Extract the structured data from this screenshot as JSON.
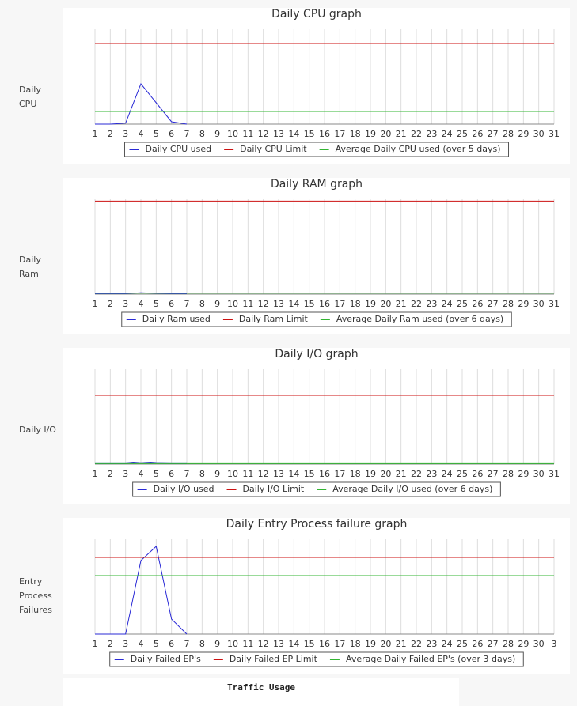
{
  "row_labels": [
    "Daily CPU",
    "Daily Ram",
    "Daily I/O",
    "Entry Process Failures"
  ],
  "traffic_title": "Traffic Usage",
  "chart_data": [
    {
      "type": "line",
      "title": "Daily CPU graph",
      "ylim": [
        0,
        100
      ],
      "categories": [
        "1",
        "2",
        "3",
        "4",
        "5",
        "6",
        "7",
        "8",
        "9",
        "10",
        "11",
        "12",
        "13",
        "14",
        "15",
        "16",
        "17",
        "18",
        "19",
        "20",
        "21",
        "22",
        "23",
        "24",
        "25",
        "26",
        "27",
        "28",
        "29",
        "30",
        "31"
      ],
      "series": [
        {
          "name": "Daily CPU used",
          "color": "#2a2ad6",
          "values": [
            0,
            0,
            1,
            42.5,
            22.5,
            2.5,
            0,
            null,
            null,
            null,
            null,
            null,
            null,
            null,
            null,
            null,
            null,
            null,
            null,
            null,
            null,
            null,
            null,
            null,
            null,
            null,
            null,
            null,
            null,
            null,
            null
          ]
        },
        {
          "name": "Daily CPU Limit",
          "color": "#cc1111",
          "values": [
            85,
            85,
            85,
            85,
            85,
            85,
            85,
            85,
            85,
            85,
            85,
            85,
            85,
            85,
            85,
            85,
            85,
            85,
            85,
            85,
            85,
            85,
            85,
            85,
            85,
            85,
            85,
            85,
            85,
            85,
            85
          ]
        },
        {
          "name": "Average Daily CPU used (over 5 days)",
          "color": "#33b533",
          "values": [
            13.3,
            13.3,
            13.3,
            13.3,
            13.3,
            13.3,
            13.3,
            13.3,
            13.3,
            13.3,
            13.3,
            13.3,
            13.3,
            13.3,
            13.3,
            13.3,
            13.3,
            13.3,
            13.3,
            13.3,
            13.3,
            13.3,
            13.3,
            13.3,
            13.3,
            13.3,
            13.3,
            13.3,
            13.3,
            13.3,
            13.3
          ]
        }
      ]
    },
    {
      "type": "line",
      "title": "Daily RAM graph",
      "ylim": [
        0,
        100
      ],
      "categories": [
        "1",
        "2",
        "3",
        "4",
        "5",
        "6",
        "7",
        "8",
        "9",
        "10",
        "11",
        "12",
        "13",
        "14",
        "15",
        "16",
        "17",
        "18",
        "19",
        "20",
        "21",
        "22",
        "23",
        "24",
        "25",
        "26",
        "27",
        "28",
        "29",
        "30",
        "31"
      ],
      "series": [
        {
          "name": "Daily Ram used",
          "color": "#2a2ad6",
          "values": [
            0.5,
            0.5,
            0.5,
            1.5,
            0.8,
            0.5,
            0.5,
            null,
            null,
            null,
            null,
            null,
            null,
            null,
            null,
            null,
            null,
            null,
            null,
            null,
            null,
            null,
            null,
            null,
            null,
            null,
            null,
            null,
            null,
            null,
            null
          ]
        },
        {
          "name": "Daily Ram Limit",
          "color": "#cc1111",
          "values": [
            98,
            98,
            98,
            98,
            98,
            98,
            98,
            98,
            98,
            98,
            98,
            98,
            98,
            98,
            98,
            98,
            98,
            98,
            98,
            98,
            98,
            98,
            98,
            98,
            98,
            98,
            98,
            98,
            98,
            98,
            98
          ]
        },
        {
          "name": "Average Daily Ram used  (over 6 days)",
          "color": "#33b533",
          "values": [
            1,
            1,
            1,
            1,
            1,
            1,
            1,
            1,
            1,
            1,
            1,
            1,
            1,
            1,
            1,
            1,
            1,
            1,
            1,
            1,
            1,
            1,
            1,
            1,
            1,
            1,
            1,
            1,
            1,
            1,
            1
          ]
        }
      ]
    },
    {
      "type": "line",
      "title": "Daily I/O graph",
      "ylim": [
        0,
        100
      ],
      "categories": [
        "1",
        "2",
        "3",
        "4",
        "5",
        "6",
        "7",
        "8",
        "9",
        "10",
        "11",
        "12",
        "13",
        "14",
        "15",
        "16",
        "17",
        "18",
        "19",
        "20",
        "21",
        "22",
        "23",
        "24",
        "25",
        "26",
        "27",
        "28",
        "29",
        "30",
        "31"
      ],
      "series": [
        {
          "name": "Daily I/O used",
          "color": "#2a2ad6",
          "values": [
            0.5,
            0.5,
            0.5,
            2,
            0.8,
            0.5,
            0.5,
            null,
            null,
            null,
            null,
            null,
            null,
            null,
            null,
            null,
            null,
            null,
            null,
            null,
            null,
            null,
            null,
            null,
            null,
            null,
            null,
            null,
            null,
            null,
            null
          ]
        },
        {
          "name": "Daily I/O Limit",
          "color": "#cc1111",
          "values": [
            72.5,
            72.5,
            72.5,
            72.5,
            72.5,
            72.5,
            72.5,
            72.5,
            72.5,
            72.5,
            72.5,
            72.5,
            72.5,
            72.5,
            72.5,
            72.5,
            72.5,
            72.5,
            72.5,
            72.5,
            72.5,
            72.5,
            72.5,
            72.5,
            72.5,
            72.5,
            72.5,
            72.5,
            72.5,
            72.5,
            72.5
          ]
        },
        {
          "name": "Average Daily I/O used (over 6 days)",
          "color": "#33b533",
          "values": [
            0.5,
            0.5,
            0.5,
            0.5,
            0.5,
            0.5,
            0.5,
            0.5,
            0.5,
            0.5,
            0.5,
            0.5,
            0.5,
            0.5,
            0.5,
            0.5,
            0.5,
            0.5,
            0.5,
            0.5,
            0.5,
            0.5,
            0.5,
            0.5,
            0.5,
            0.5,
            0.5,
            0.5,
            0.5,
            0.5,
            0.5
          ]
        }
      ]
    },
    {
      "type": "line",
      "title": "Daily Entry Process failure graph",
      "ylim": [
        0,
        100
      ],
      "categories": [
        "1",
        "2",
        "3",
        "4",
        "5",
        "6",
        "7",
        "8",
        "9",
        "10",
        "11",
        "12",
        "13",
        "14",
        "15",
        "16",
        "17",
        "18",
        "19",
        "20",
        "21",
        "22",
        "23",
        "24",
        "25",
        "26",
        "27",
        "28",
        "29",
        "30",
        "3"
      ],
      "series": [
        {
          "name": "Daily Failed EP's",
          "color": "#2a2ad6",
          "values": [
            0,
            0,
            0,
            77.5,
            92.5,
            15.8,
            0,
            null,
            null,
            null,
            null,
            null,
            null,
            null,
            null,
            null,
            null,
            null,
            null,
            null,
            null,
            null,
            null,
            null,
            null,
            null,
            null,
            null,
            null,
            null,
            null
          ]
        },
        {
          "name": "Daily Failed EP Limit",
          "color": "#cc1111",
          "values": [
            80.8,
            80.8,
            80.8,
            80.8,
            80.8,
            80.8,
            80.8,
            80.8,
            80.8,
            80.8,
            80.8,
            80.8,
            80.8,
            80.8,
            80.8,
            80.8,
            80.8,
            80.8,
            80.8,
            80.8,
            80.8,
            80.8,
            80.8,
            80.8,
            80.8,
            80.8,
            80.8,
            80.8,
            80.8,
            80.8,
            80.8
          ]
        },
        {
          "name": "Average Daily Failed EP's  (over 3 days)",
          "color": "#33b533",
          "values": [
            61.7,
            61.7,
            61.7,
            61.7,
            61.7,
            61.7,
            61.7,
            61.7,
            61.7,
            61.7,
            61.7,
            61.7,
            61.7,
            61.7,
            61.7,
            61.7,
            61.7,
            61.7,
            61.7,
            61.7,
            61.7,
            61.7,
            61.7,
            61.7,
            61.7,
            61.7,
            61.7,
            61.7,
            61.7,
            61.7,
            61.7
          ]
        }
      ]
    }
  ]
}
